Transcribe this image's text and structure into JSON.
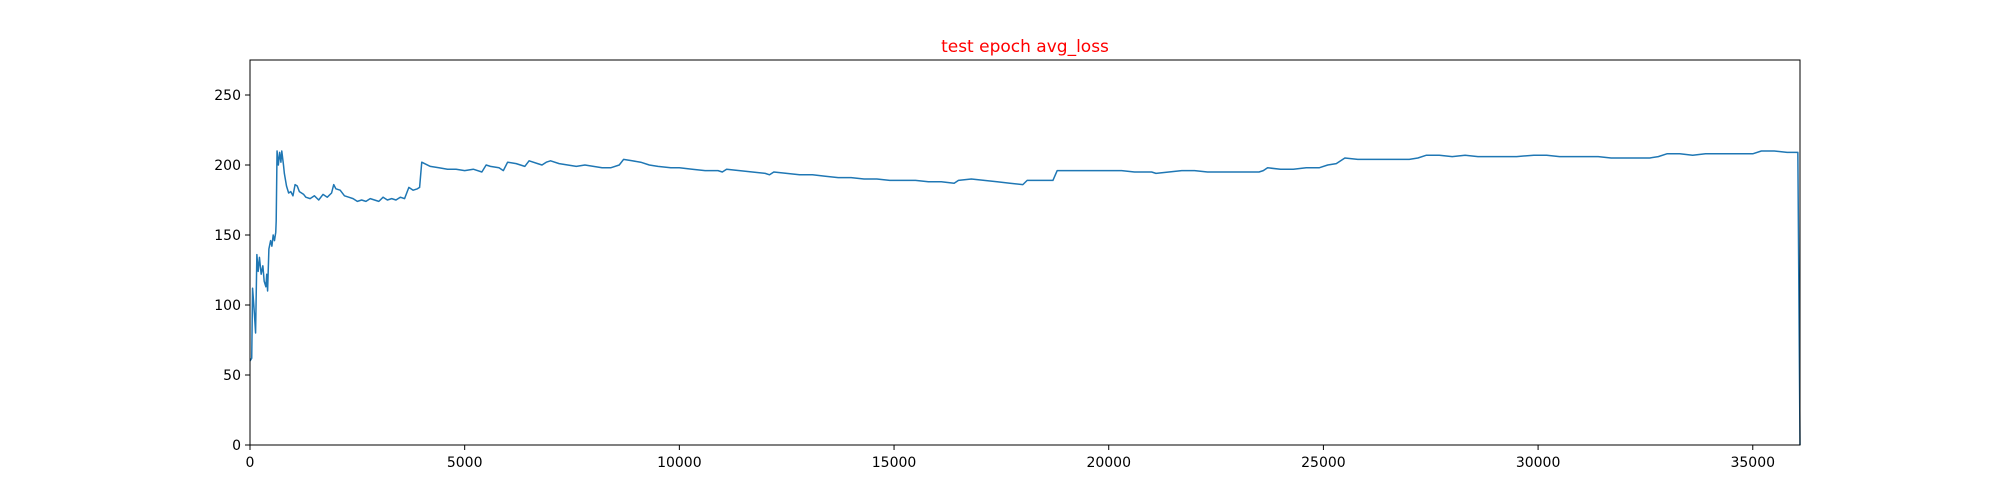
{
  "chart_data": {
    "type": "line",
    "title": "test epoch avg_loss",
    "title_color": "#ff0000",
    "xlabel": "",
    "ylabel": "",
    "xlim": [
      0,
      36100
    ],
    "ylim": [
      0,
      275
    ],
    "xticks": [
      0,
      5000,
      10000,
      15000,
      20000,
      25000,
      30000,
      35000
    ],
    "yticks": [
      0,
      50,
      100,
      150,
      200,
      250
    ],
    "grid": false,
    "series": [
      {
        "color": "#1f77b4",
        "points": [
          [
            0,
            60
          ],
          [
            40,
            62
          ],
          [
            60,
            112
          ],
          [
            100,
            95
          ],
          [
            130,
            80
          ],
          [
            160,
            136
          ],
          [
            190,
            124
          ],
          [
            220,
            134
          ],
          [
            260,
            122
          ],
          [
            300,
            128
          ],
          [
            330,
            117
          ],
          [
            370,
            113
          ],
          [
            390,
            122
          ],
          [
            410,
            110
          ],
          [
            440,
            140
          ],
          [
            480,
            146
          ],
          [
            510,
            142
          ],
          [
            540,
            150
          ],
          [
            570,
            146
          ],
          [
            600,
            152
          ],
          [
            610,
            160
          ],
          [
            630,
            210
          ],
          [
            660,
            200
          ],
          [
            690,
            209
          ],
          [
            720,
            202
          ],
          [
            740,
            210
          ],
          [
            760,
            205
          ],
          [
            780,
            200
          ],
          [
            800,
            194
          ],
          [
            850,
            185
          ],
          [
            900,
            180
          ],
          [
            950,
            181
          ],
          [
            1000,
            178
          ],
          [
            1050,
            186
          ],
          [
            1100,
            185
          ],
          [
            1150,
            181
          ],
          [
            1200,
            180
          ],
          [
            1250,
            179
          ],
          [
            1300,
            177
          ],
          [
            1400,
            176
          ],
          [
            1500,
            178
          ],
          [
            1600,
            175
          ],
          [
            1700,
            179
          ],
          [
            1800,
            177
          ],
          [
            1900,
            180
          ],
          [
            1950,
            186
          ],
          [
            2000,
            183
          ],
          [
            2100,
            182
          ],
          [
            2200,
            178
          ],
          [
            2300,
            177
          ],
          [
            2400,
            176
          ],
          [
            2500,
            174
          ],
          [
            2600,
            175
          ],
          [
            2700,
            174
          ],
          [
            2800,
            176
          ],
          [
            2900,
            175
          ],
          [
            3000,
            174
          ],
          [
            3100,
            177
          ],
          [
            3200,
            175
          ],
          [
            3300,
            176
          ],
          [
            3400,
            175
          ],
          [
            3500,
            177
          ],
          [
            3600,
            176
          ],
          [
            3700,
            184
          ],
          [
            3800,
            182
          ],
          [
            3900,
            183
          ],
          [
            3950,
            184
          ],
          [
            4000,
            202
          ],
          [
            4200,
            199
          ],
          [
            4400,
            198
          ],
          [
            4600,
            197
          ],
          [
            4800,
            197
          ],
          [
            5000,
            196
          ],
          [
            5200,
            197
          ],
          [
            5400,
            195
          ],
          [
            5500,
            200
          ],
          [
            5600,
            199
          ],
          [
            5800,
            198
          ],
          [
            5900,
            196
          ],
          [
            6000,
            202
          ],
          [
            6200,
            201
          ],
          [
            6400,
            199
          ],
          [
            6500,
            203
          ],
          [
            6700,
            201
          ],
          [
            6800,
            200
          ],
          [
            6900,
            202
          ],
          [
            7000,
            203
          ],
          [
            7200,
            201
          ],
          [
            7400,
            200
          ],
          [
            7600,
            199
          ],
          [
            7800,
            200
          ],
          [
            8000,
            199
          ],
          [
            8200,
            198
          ],
          [
            8400,
            198
          ],
          [
            8600,
            200
          ],
          [
            8700,
            204
          ],
          [
            8900,
            203
          ],
          [
            9100,
            202
          ],
          [
            9300,
            200
          ],
          [
            9500,
            199
          ],
          [
            9800,
            198
          ],
          [
            10000,
            198
          ],
          [
            10300,
            197
          ],
          [
            10600,
            196
          ],
          [
            10900,
            196
          ],
          [
            11000,
            195
          ],
          [
            11100,
            197
          ],
          [
            11400,
            196
          ],
          [
            11700,
            195
          ],
          [
            12000,
            194
          ],
          [
            12100,
            193
          ],
          [
            12200,
            195
          ],
          [
            12500,
            194
          ],
          [
            12800,
            193
          ],
          [
            13100,
            193
          ],
          [
            13400,
            192
          ],
          [
            13700,
            191
          ],
          [
            14000,
            191
          ],
          [
            14300,
            190
          ],
          [
            14600,
            190
          ],
          [
            14900,
            189
          ],
          [
            15200,
            189
          ],
          [
            15500,
            189
          ],
          [
            15800,
            188
          ],
          [
            16100,
            188
          ],
          [
            16400,
            187
          ],
          [
            16500,
            189
          ],
          [
            16800,
            190
          ],
          [
            17100,
            189
          ],
          [
            17400,
            188
          ],
          [
            17700,
            187
          ],
          [
            18000,
            186
          ],
          [
            18100,
            189
          ],
          [
            18400,
            189
          ],
          [
            18700,
            189
          ],
          [
            18800,
            196
          ],
          [
            19100,
            196
          ],
          [
            19400,
            196
          ],
          [
            19700,
            196
          ],
          [
            20000,
            196
          ],
          [
            20300,
            196
          ],
          [
            20600,
            195
          ],
          [
            20900,
            195
          ],
          [
            21000,
            195
          ],
          [
            21100,
            194
          ],
          [
            21400,
            195
          ],
          [
            21700,
            196
          ],
          [
            22000,
            196
          ],
          [
            22300,
            195
          ],
          [
            22600,
            195
          ],
          [
            22900,
            195
          ],
          [
            23200,
            195
          ],
          [
            23500,
            195
          ],
          [
            23600,
            196
          ],
          [
            23700,
            198
          ],
          [
            24000,
            197
          ],
          [
            24300,
            197
          ],
          [
            24600,
            198
          ],
          [
            24900,
            198
          ],
          [
            25100,
            200
          ],
          [
            25300,
            201
          ],
          [
            25500,
            205
          ],
          [
            25800,
            204
          ],
          [
            26100,
            204
          ],
          [
            26400,
            204
          ],
          [
            26700,
            204
          ],
          [
            27000,
            204
          ],
          [
            27200,
            205
          ],
          [
            27400,
            207
          ],
          [
            27700,
            207
          ],
          [
            28000,
            206
          ],
          [
            28300,
            207
          ],
          [
            28600,
            206
          ],
          [
            28900,
            206
          ],
          [
            29200,
            206
          ],
          [
            29500,
            206
          ],
          [
            29900,
            207
          ],
          [
            30200,
            207
          ],
          [
            30500,
            206
          ],
          [
            30800,
            206
          ],
          [
            31100,
            206
          ],
          [
            31400,
            206
          ],
          [
            31700,
            205
          ],
          [
            32000,
            205
          ],
          [
            32300,
            205
          ],
          [
            32600,
            205
          ],
          [
            32800,
            206
          ],
          [
            33000,
            208
          ],
          [
            33300,
            208
          ],
          [
            33600,
            207
          ],
          [
            33900,
            208
          ],
          [
            34200,
            208
          ],
          [
            34500,
            208
          ],
          [
            34800,
            208
          ],
          [
            35000,
            208
          ],
          [
            35200,
            210
          ],
          [
            35500,
            210
          ],
          [
            35800,
            209
          ],
          [
            36050,
            209
          ],
          [
            36100,
            0
          ]
        ]
      }
    ]
  }
}
